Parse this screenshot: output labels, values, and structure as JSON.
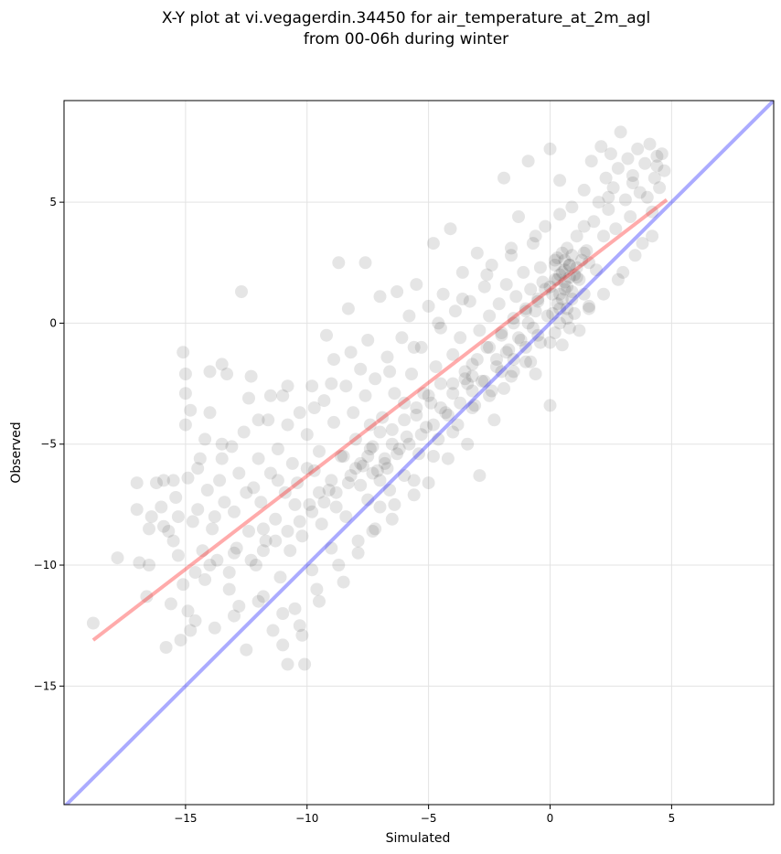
{
  "chart_data": {
    "type": "scatter",
    "title_line1": "X-Y plot at vi.vegagerdin.34450 for air_temperature_at_2m_agl",
    "title_line2": "from 00-06h during winter",
    "xlabel": "Simulated",
    "ylabel": "Observed",
    "xlim": [
      -20,
      9.2
    ],
    "ylim": [
      -19.9,
      9.2
    ],
    "xticks": [
      -15,
      -10,
      -5,
      0,
      5
    ],
    "yticks": [
      -15,
      -10,
      -5,
      0,
      5
    ],
    "xtick_labels": [
      "−15",
      "−10",
      "−5",
      "0",
      "5"
    ],
    "ytick_labels": [
      "−15",
      "−10",
      "−5",
      "0",
      "5"
    ],
    "grid": true,
    "point_color": "#000000",
    "point_alpha": 0.1,
    "identity_line": {
      "x": [
        -20,
        9.2
      ],
      "y": [
        -20,
        9.2
      ],
      "color": "#0000ff",
      "alpha": 0.33
    },
    "fit_line": {
      "x": [
        -18.8,
        4.8
      ],
      "y": [
        -13.1,
        5.1
      ],
      "color": "#ff0000",
      "alpha": 0.33
    },
    "points": [
      [
        -18.8,
        -12.4
      ],
      [
        -17.8,
        -9.7
      ],
      [
        -17.0,
        -6.6
      ],
      [
        -17.0,
        -7.7
      ],
      [
        -16.9,
        -9.9
      ],
      [
        -16.6,
        -11.3
      ],
      [
        -16.5,
        -10.0
      ],
      [
        -16.4,
        -8.0
      ],
      [
        -16.2,
        -6.6
      ],
      [
        -16.0,
        -7.6
      ],
      [
        -15.9,
        -8.4
      ],
      [
        -15.9,
        -6.5
      ],
      [
        -15.8,
        -13.4
      ],
      [
        -15.7,
        -8.6
      ],
      [
        -15.6,
        -11.6
      ],
      [
        -15.5,
        -6.5
      ],
      [
        -15.4,
        -7.2
      ],
      [
        -15.2,
        -13.1
      ],
      [
        -15.3,
        -9.6
      ],
      [
        -15.3,
        -8.0
      ],
      [
        -15.1,
        -10.8
      ],
      [
        -15.1,
        -1.2
      ],
      [
        -15.0,
        -2.1
      ],
      [
        -15.0,
        -2.9
      ],
      [
        -15.0,
        -4.2
      ],
      [
        -14.9,
        -6.4
      ],
      [
        -14.9,
        -11.9
      ],
      [
        -14.8,
        -12.7
      ],
      [
        -14.8,
        -3.6
      ],
      [
        -14.7,
        -8.2
      ],
      [
        -14.6,
        -10.3
      ],
      [
        -14.6,
        -12.3
      ],
      [
        -14.5,
        -7.7
      ],
      [
        -14.4,
        -5.6
      ],
      [
        -14.3,
        -9.4
      ],
      [
        -14.2,
        -10.6
      ],
      [
        -14.2,
        -4.8
      ],
      [
        -14.1,
        -6.9
      ],
      [
        -14.0,
        -3.7
      ],
      [
        -14.0,
        -2.0
      ],
      [
        -13.9,
        -8.5
      ],
      [
        -13.8,
        -12.6
      ],
      [
        -13.7,
        -9.8
      ],
      [
        -13.6,
        -6.5
      ],
      [
        -13.5,
        -5.6
      ],
      [
        -13.5,
        -1.7
      ],
      [
        -13.4,
        -7.4
      ],
      [
        -13.3,
        -2.1
      ],
      [
        -13.2,
        -10.3
      ],
      [
        -13.1,
        -5.1
      ],
      [
        -13.0,
        -7.8
      ],
      [
        -13.0,
        -12.1
      ],
      [
        -12.9,
        -9.3
      ],
      [
        -12.8,
        -11.7
      ],
      [
        -12.8,
        -6.2
      ],
      [
        -12.7,
        1.3
      ],
      [
        -12.6,
        -4.5
      ],
      [
        -12.5,
        -13.5
      ],
      [
        -12.4,
        -8.6
      ],
      [
        -12.4,
        -3.1
      ],
      [
        -12.3,
        -2.2
      ],
      [
        -12.2,
        -6.8
      ],
      [
        -12.1,
        -10.0
      ],
      [
        -12.0,
        -5.6
      ],
      [
        -11.9,
        -7.4
      ],
      [
        -11.8,
        -11.3
      ],
      [
        -11.7,
        -9.0
      ],
      [
        -11.6,
        -4.0
      ],
      [
        -11.5,
        -6.2
      ],
      [
        -11.4,
        -12.7
      ],
      [
        -11.3,
        -8.1
      ],
      [
        -11.2,
        -5.2
      ],
      [
        -11.1,
        -10.5
      ],
      [
        -11.0,
        -3.0
      ],
      [
        -11.0,
        -13.3
      ],
      [
        -10.9,
        -7.0
      ],
      [
        -10.8,
        -14.1
      ],
      [
        -10.8,
        -2.6
      ],
      [
        -10.7,
        -9.4
      ],
      [
        -10.6,
        -5.8
      ],
      [
        -10.5,
        -11.8
      ],
      [
        -10.4,
        -6.6
      ],
      [
        -10.3,
        -3.7
      ],
      [
        -10.2,
        -8.8
      ],
      [
        -10.2,
        -12.9
      ],
      [
        -10.1,
        -14.1
      ],
      [
        -10.0,
        -4.6
      ],
      [
        -9.9,
        -7.5
      ],
      [
        -9.8,
        -10.2
      ],
      [
        -9.8,
        -2.6
      ],
      [
        -9.7,
        -6.1
      ],
      [
        -9.6,
        -11.0
      ],
      [
        -9.5,
        -5.3
      ],
      [
        -9.4,
        -8.3
      ],
      [
        -9.3,
        -3.2
      ],
      [
        -9.2,
        -0.5
      ],
      [
        -9.1,
        -6.9
      ],
      [
        -9.0,
        -9.3
      ],
      [
        -8.9,
        -4.1
      ],
      [
        -8.9,
        -1.5
      ],
      [
        -8.8,
        -7.6
      ],
      [
        -8.7,
        2.5
      ],
      [
        -8.6,
        -5.5
      ],
      [
        -8.5,
        -10.7
      ],
      [
        -8.4,
        -8.0
      ],
      [
        -8.4,
        -2.6
      ],
      [
        -8.3,
        0.6
      ],
      [
        -8.2,
        -6.3
      ],
      [
        -8.1,
        -3.7
      ],
      [
        -8.0,
        -4.8
      ],
      [
        -7.9,
        -9.0
      ],
      [
        -7.8,
        -1.9
      ],
      [
        -7.8,
        -6.7
      ],
      [
        -7.7,
        -5.9
      ],
      [
        -7.6,
        2.5
      ],
      [
        -7.5,
        -7.3
      ],
      [
        -7.5,
        -0.7
      ],
      [
        -7.4,
        -4.2
      ],
      [
        -7.3,
        -8.6
      ],
      [
        -7.3,
        -5.1
      ],
      [
        -7.2,
        -2.3
      ],
      [
        -7.1,
        -6.1
      ],
      [
        -7.0,
        -7.6
      ],
      [
        -7.0,
        1.1
      ],
      [
        -6.9,
        -3.9
      ],
      [
        -6.8,
        -5.6
      ],
      [
        -6.7,
        -1.4
      ],
      [
        -6.6,
        -6.9
      ],
      [
        -6.5,
        -8.1
      ],
      [
        -6.5,
        -4.4
      ],
      [
        -6.4,
        -2.9
      ],
      [
        -6.3,
        1.3
      ],
      [
        -6.2,
        -5.2
      ],
      [
        -6.1,
        -0.6
      ],
      [
        -6.0,
        -6.3
      ],
      [
        -6.0,
        -3.3
      ],
      [
        -5.9,
        -4.7
      ],
      [
        -5.8,
        0.3
      ],
      [
        -5.7,
        -2.1
      ],
      [
        -5.6,
        -7.1
      ],
      [
        -5.5,
        -3.8
      ],
      [
        -5.5,
        1.6
      ],
      [
        -5.4,
        -5.4
      ],
      [
        -5.3,
        -1.0
      ],
      [
        -5.2,
        -2.9
      ],
      [
        -5.1,
        -4.3
      ],
      [
        -5.0,
        0.7
      ],
      [
        -5.0,
        -6.6
      ],
      [
        -4.9,
        -3.3
      ],
      [
        -4.8,
        3.3
      ],
      [
        -4.7,
        -1.8
      ],
      [
        -4.6,
        -4.8
      ],
      [
        -4.5,
        -0.2
      ],
      [
        -4.5,
        -2.5
      ],
      [
        -4.4,
        1.2
      ],
      [
        -4.3,
        -3.7
      ],
      [
        -4.2,
        -5.6
      ],
      [
        -4.1,
        3.9
      ],
      [
        -4.0,
        -1.3
      ],
      [
        -4.0,
        -2.9
      ],
      [
        -3.9,
        0.5
      ],
      [
        -3.8,
        -4.2
      ],
      [
        -3.7,
        -0.6
      ],
      [
        -3.6,
        2.1
      ],
      [
        -3.5,
        -2.3
      ],
      [
        -3.4,
        -5.0
      ],
      [
        -3.3,
        0.9
      ],
      [
        -3.2,
        -1.7
      ],
      [
        -3.1,
        -3.4
      ],
      [
        -3.0,
        2.9
      ],
      [
        -2.9,
        -0.3
      ],
      [
        -2.9,
        -6.3
      ],
      [
        -2.8,
        -2.4
      ],
      [
        -2.7,
        1.5
      ],
      [
        -2.6,
        -1.0
      ],
      [
        -2.5,
        -3.0
      ],
      [
        -2.5,
        0.3
      ],
      [
        -2.4,
        2.4
      ],
      [
        -2.3,
        -4.0
      ],
      [
        -2.2,
        -1.5
      ],
      [
        -2.1,
        0.8
      ],
      [
        -2.0,
        -0.4
      ],
      [
        -1.9,
        -2.7
      ],
      [
        -1.9,
        6.0
      ],
      [
        -1.8,
        1.6
      ],
      [
        -1.7,
        -1.1
      ],
      [
        -1.6,
        3.1
      ],
      [
        -1.5,
        0.2
      ],
      [
        -1.5,
        -2.0
      ],
      [
        -1.4,
        1.1
      ],
      [
        -1.3,
        4.4
      ],
      [
        -1.2,
        -0.7
      ],
      [
        -1.1,
        2.1
      ],
      [
        -1.0,
        -1.6
      ],
      [
        -1.0,
        0.6
      ],
      [
        -0.9,
        6.7
      ],
      [
        -0.8,
        1.4
      ],
      [
        -0.7,
        -0.2
      ],
      [
        -0.7,
        3.3
      ],
      [
        -0.6,
        -2.1
      ],
      [
        -0.5,
        0.9
      ],
      [
        -0.4,
        2.3
      ],
      [
        -0.4,
        -0.8
      ],
      [
        -0.3,
        1.7
      ],
      [
        -0.2,
        4.0
      ],
      [
        -0.1,
        0.3
      ],
      [
        0.0,
        7.2
      ],
      [
        0.0,
        -3.4
      ],
      [
        0.1,
        1.2
      ],
      [
        0.2,
        2.6
      ],
      [
        0.2,
        -0.4
      ],
      [
        0.3,
        1.8
      ],
      [
        0.4,
        5.9
      ],
      [
        0.4,
        0.6
      ],
      [
        0.5,
        2.1
      ],
      [
        0.5,
        -0.9
      ],
      [
        0.6,
        1.4
      ],
      [
        0.7,
        3.1
      ],
      [
        0.7,
        0.2
      ],
      [
        0.8,
        2.4
      ],
      [
        0.9,
        1.0
      ],
      [
        0.9,
        4.8
      ],
      [
        1.0,
        0.4
      ],
      [
        1.1,
        1.9
      ],
      [
        1.1,
        3.6
      ],
      [
        1.2,
        -0.3
      ],
      [
        1.3,
        2.6
      ],
      [
        1.4,
        5.5
      ],
      [
        1.4,
        1.2
      ],
      [
        1.5,
        3.0
      ],
      [
        1.6,
        0.7
      ],
      [
        1.7,
        6.7
      ],
      [
        1.8,
        4.2
      ],
      [
        1.9,
        2.2
      ],
      [
        2.0,
        5.0
      ],
      [
        2.1,
        7.3
      ],
      [
        2.2,
        3.6
      ],
      [
        2.3,
        6.0
      ],
      [
        2.4,
        4.7
      ],
      [
        2.5,
        7.0
      ],
      [
        2.6,
        5.6
      ],
      [
        2.7,
        3.9
      ],
      [
        2.8,
        6.4
      ],
      [
        2.9,
        7.9
      ],
      [
        3.0,
        2.1
      ],
      [
        3.1,
        5.1
      ],
      [
        3.2,
        6.8
      ],
      [
        3.3,
        4.4
      ],
      [
        3.4,
        6.1
      ],
      [
        3.6,
        7.2
      ],
      [
        3.7,
        5.4
      ],
      [
        3.8,
        3.3
      ],
      [
        3.9,
        6.6
      ],
      [
        4.0,
        5.2
      ],
      [
        4.1,
        7.4
      ],
      [
        4.2,
        4.6
      ],
      [
        4.3,
        6.0
      ],
      [
        4.4,
        6.9
      ],
      [
        4.5,
        5.6
      ],
      [
        4.6,
        7.0
      ],
      [
        4.7,
        6.3
      ],
      [
        -14.5,
        -6.0
      ],
      [
        -13.8,
        -8.0
      ],
      [
        -13.0,
        -9.5
      ],
      [
        -12.5,
        -7.0
      ],
      [
        -11.8,
        -8.5
      ],
      [
        -11.2,
        -6.5
      ],
      [
        -10.5,
        -7.5
      ],
      [
        -10.0,
        -6.0
      ],
      [
        -9.5,
        -7.0
      ],
      [
        -9.0,
        -6.5
      ],
      [
        -8.5,
        -5.5
      ],
      [
        -8.0,
        -6.0
      ],
      [
        -7.5,
        -5.5
      ],
      [
        -7.0,
        -4.5
      ],
      [
        -6.5,
        -5.0
      ],
      [
        -6.0,
        -4.0
      ],
      [
        -5.5,
        -3.5
      ],
      [
        -5.0,
        -3.0
      ],
      [
        -4.5,
        -3.5
      ],
      [
        -4.0,
        -2.5
      ],
      [
        -3.5,
        -2.0
      ],
      [
        -3.0,
        -1.5
      ],
      [
        -2.5,
        -1.0
      ],
      [
        -2.0,
        -0.5
      ],
      [
        -1.5,
        0.0
      ],
      [
        -1.0,
        0.5
      ],
      [
        -0.5,
        1.0
      ],
      [
        0.0,
        1.5
      ],
      [
        0.2,
        1.8
      ],
      [
        0.4,
        2.0
      ],
      [
        0.5,
        1.0
      ],
      [
        0.6,
        2.2
      ],
      [
        0.7,
        1.5
      ],
      [
        0.8,
        1.9
      ],
      [
        0.3,
        0.8
      ],
      [
        0.1,
        0.4
      ],
      [
        0.6,
        2.6
      ],
      [
        0.5,
        2.9
      ],
      [
        0.8,
        2.4
      ],
      [
        1.0,
        2.0
      ],
      [
        0.9,
        1.3
      ],
      [
        0.4,
        1.2
      ],
      [
        0.7,
        0.6
      ],
      [
        0.2,
        2.4
      ],
      [
        1.2,
        1.8
      ],
      [
        -0.2,
        1.4
      ],
      [
        -0.6,
        0.5
      ],
      [
        -0.9,
        0.0
      ],
      [
        -1.3,
        -0.6
      ],
      [
        -1.8,
        -1.2
      ],
      [
        -2.2,
        -1.8
      ],
      [
        -2.7,
        -2.4
      ],
      [
        -3.2,
        -2.8
      ],
      [
        -3.7,
        -3.3
      ],
      [
        -4.2,
        -3.8
      ],
      [
        -4.8,
        -4.2
      ],
      [
        -5.3,
        -4.6
      ],
      [
        -5.8,
        -5.0
      ],
      [
        -6.3,
        -5.4
      ],
      [
        -6.8,
        -5.8
      ],
      [
        -7.3,
        -6.2
      ],
      [
        -7.8,
        -5.8
      ],
      [
        -8.3,
        -6.6
      ],
      [
        -8.8,
        -7.0
      ],
      [
        -9.3,
        -7.4
      ],
      [
        -9.8,
        -7.8
      ],
      [
        -10.3,
        -8.2
      ],
      [
        -10.8,
        -8.6
      ],
      [
        -11.3,
        -9.0
      ],
      [
        -11.8,
        -9.4
      ],
      [
        -12.3,
        -9.8
      ],
      [
        -7.0,
        -6.5
      ],
      [
        -7.4,
        -5.2
      ],
      [
        -6.7,
        -6.0
      ],
      [
        -3.2,
        -2.2
      ],
      [
        -3.4,
        -2.5
      ],
      [
        -2.0,
        -2.0
      ],
      [
        -1.5,
        -1.5
      ],
      [
        -1.0,
        -1.0
      ],
      [
        -0.5,
        -0.5
      ],
      [
        0.3,
        2.7
      ],
      [
        0.9,
        2.8
      ],
      [
        1.1,
        2.3
      ],
      [
        0.6,
        1.7
      ],
      [
        0.4,
        0.0
      ],
      [
        1.4,
        2.9
      ],
      [
        1.6,
        2.5
      ],
      [
        -13.5,
        -5.0
      ],
      [
        -12.0,
        -4.0
      ],
      [
        -11.5,
        -3.0
      ],
      [
        -10.8,
        -4.2
      ],
      [
        -9.7,
        -3.5
      ],
      [
        -9.0,
        -2.5
      ],
      [
        -8.2,
        -1.2
      ],
      [
        -7.6,
        -3.0
      ],
      [
        -6.6,
        -2.0
      ],
      [
        -5.6,
        -1.0
      ],
      [
        -4.6,
        0.0
      ],
      [
        -3.6,
        1.0
      ],
      [
        -2.6,
        2.0
      ],
      [
        -1.6,
        2.8
      ],
      [
        -0.6,
        3.6
      ],
      [
        0.4,
        4.5
      ],
      [
        1.4,
        4.0
      ],
      [
        2.4,
        5.2
      ],
      [
        3.4,
        5.8
      ],
      [
        4.4,
        6.5
      ],
      [
        -16.5,
        -8.5
      ],
      [
        -15.5,
        -9.0
      ],
      [
        -14.0,
        -10.0
      ],
      [
        -13.2,
        -11.0
      ],
      [
        -12.0,
        -11.5
      ],
      [
        -11.0,
        -12.0
      ],
      [
        -10.3,
        -12.5
      ],
      [
        -9.5,
        -11.5
      ],
      [
        -8.7,
        -10.0
      ],
      [
        -7.9,
        -9.5
      ],
      [
        -7.2,
        -8.5
      ],
      [
        -6.4,
        -7.5
      ],
      [
        -5.6,
        -6.5
      ],
      [
        -4.8,
        -5.5
      ],
      [
        -4.0,
        -4.5
      ],
      [
        -3.2,
        -3.5
      ],
      [
        -2.4,
        -2.8
      ],
      [
        -1.6,
        -2.2
      ],
      [
        -0.8,
        -1.6
      ],
      [
        0.0,
        -0.8
      ],
      [
        0.8,
        -0.2
      ],
      [
        1.6,
        0.6
      ],
      [
        2.2,
        1.2
      ],
      [
        2.8,
        1.8
      ],
      [
        3.5,
        2.8
      ],
      [
        4.2,
        3.6
      ]
    ]
  }
}
